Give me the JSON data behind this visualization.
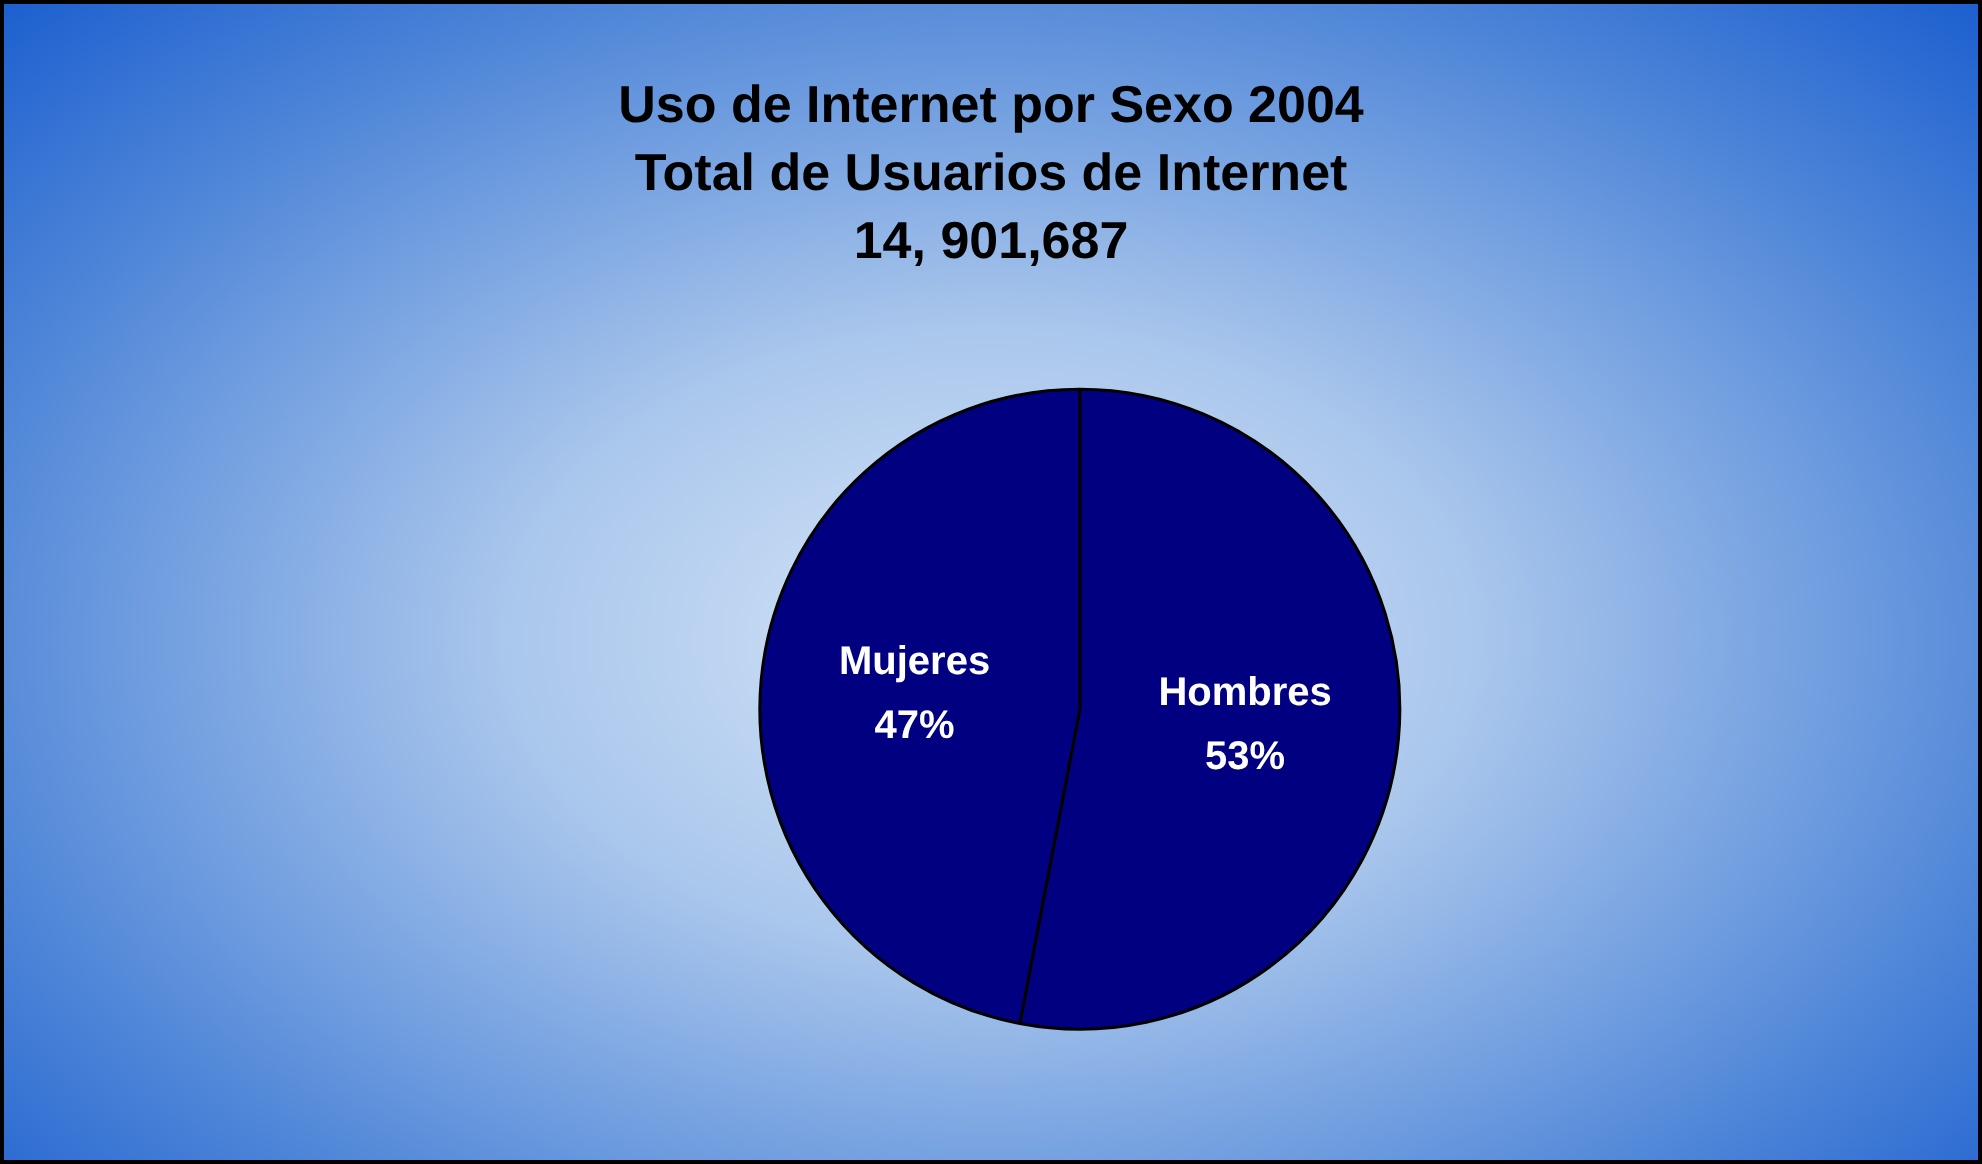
{
  "chart_data": {
    "type": "pie",
    "title": "Uso de Internet por Sexo 2004\nTotal de Usuarios de Internet\n14, 901,687",
    "categories": [
      "Hombres",
      "Mujeres"
    ],
    "values": [
      53,
      47
    ],
    "colors": [
      "#000080",
      "#000080"
    ],
    "value_labels": [
      "53%",
      "47%"
    ],
    "legend": false
  }
}
